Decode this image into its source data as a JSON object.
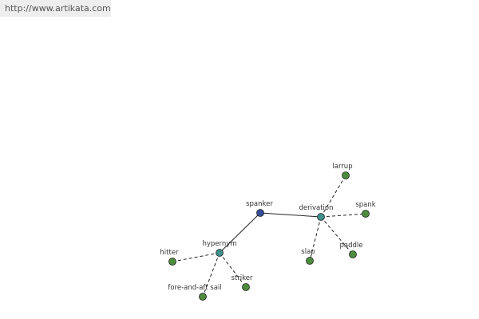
{
  "header": {
    "url": "http://www.artikata.com"
  },
  "nodes": [
    {
      "label": "spanker"
    },
    {
      "label": "derivation"
    },
    {
      "label": "hypernym"
    },
    {
      "label": "larrup"
    },
    {
      "label": "spank"
    },
    {
      "label": "paddle"
    },
    {
      "label": "slap"
    },
    {
      "label": "hitter"
    },
    {
      "label": "fore-and-aft sail"
    },
    {
      "label": "striker"
    }
  ]
}
